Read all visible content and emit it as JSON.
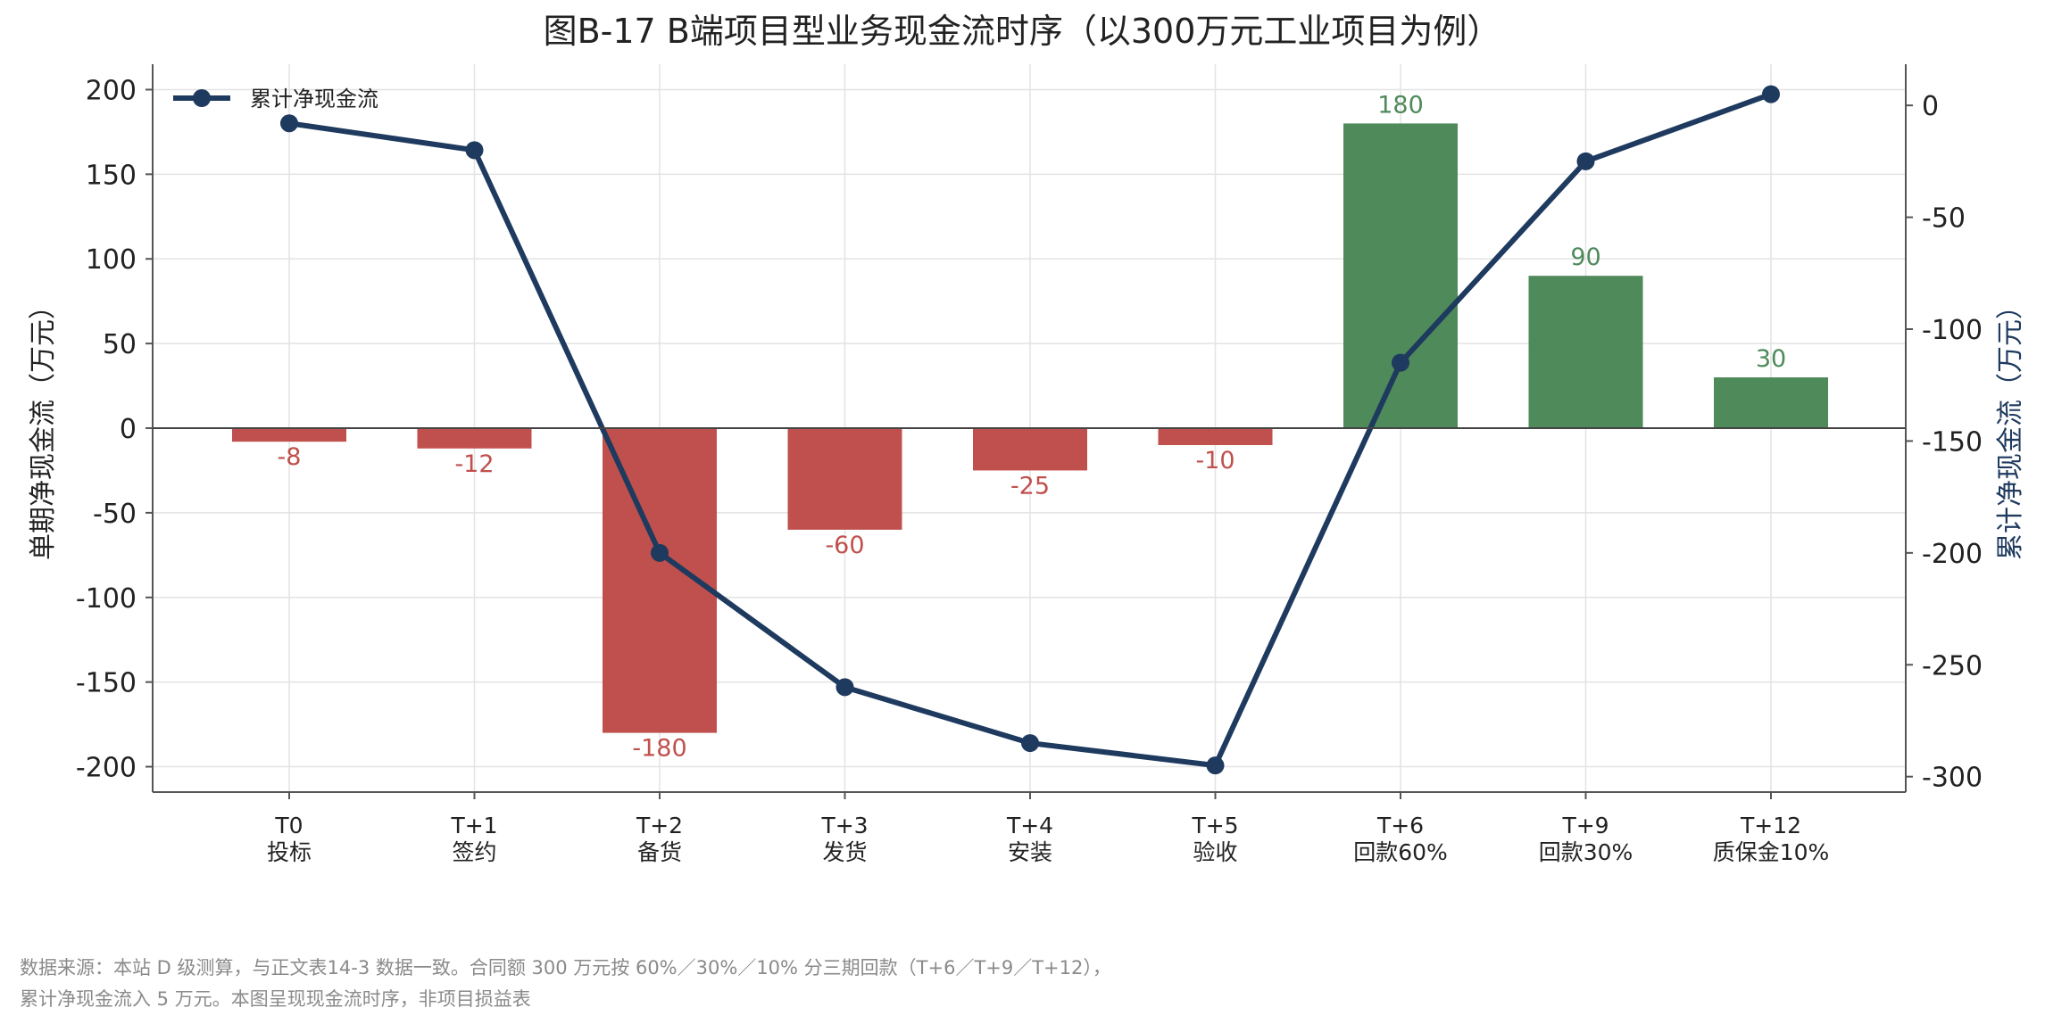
{
  "chart_data": {
    "type": "bar",
    "title": "图B-17  B端项目型业务现金流时序（以300万元工业项目为例）",
    "categories": [
      [
        "T0",
        "投标"
      ],
      [
        "T+1",
        "签约"
      ],
      [
        "T+2",
        "备货"
      ],
      [
        "T+3",
        "发货"
      ],
      [
        "T+4",
        "安装"
      ],
      [
        "T+5",
        "验收"
      ],
      [
        "T+6",
        "回款60%"
      ],
      [
        "T+9",
        "回款30%"
      ],
      [
        "T+12",
        "质保金10%"
      ]
    ],
    "series": [
      {
        "type": "bar",
        "axis": "left",
        "values": [
          -8,
          -12,
          -180,
          -60,
          -25,
          -10,
          180,
          90,
          30
        ],
        "data_labels": [
          "-8",
          "-12",
          "-180",
          "-60",
          "-25",
          "-10",
          "180",
          "90",
          "30"
        ]
      },
      {
        "type": "line",
        "axis": "right",
        "name": "累计净现金流",
        "values": [
          -8,
          -20,
          -200,
          -260,
          -285,
          -295,
          -115,
          -25,
          5
        ]
      }
    ],
    "ylabel": "单期净现金流（万元）",
    "ylabel_right": "累计净现金流（万元）",
    "ylim": [
      -215,
      215
    ],
    "ylim_right": [
      -306.9,
      18.4
    ],
    "yticks": [
      -200,
      -150,
      -100,
      -50,
      0,
      50,
      100,
      150,
      200
    ],
    "yticks_right": [
      -300,
      -250,
      -200,
      -150,
      -100,
      -50,
      0
    ],
    "grid": true,
    "legend_position": "top-left",
    "colors": {
      "negative_bar": "#c0504d",
      "positive_bar": "#4e8a5a",
      "line": "#1e3a5f",
      "zero_line": "#444444",
      "grid": "#e3e3e3",
      "axis": "#555555"
    }
  },
  "footnote": [
    "数据来源：本站 D 级测算，与正文表14-3 数据一致。合同额 300 万元按 60%／30%／10% 分三期回款（T+6／T+9／T+12），",
    "累计净现金流入 5 万元。本图呈现现金流时序，非项目损益表"
  ]
}
